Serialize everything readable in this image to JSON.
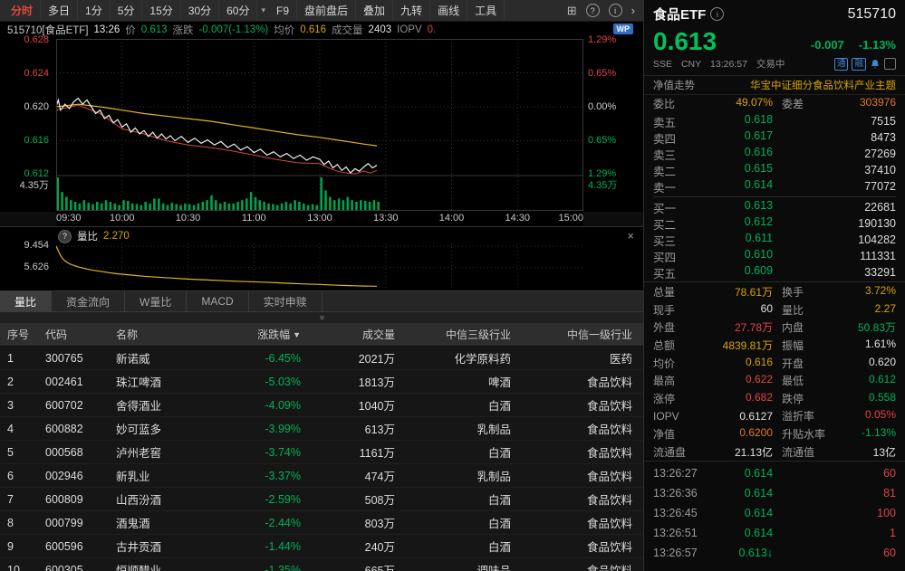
{
  "colors": {
    "up_red": "#e14444",
    "down_green": "#00b05a",
    "price_green": "#00c25c",
    "yellow": "#d8a400",
    "orange": "#e0762f",
    "blue_accent": "#3f85d6",
    "volume_green": "#00a14e",
    "avg_line": "#e3b422",
    "price_line": "#f0f0f0",
    "iopv_line": "#d64545"
  },
  "icons": {
    "caret": "▾",
    "grid": "⊞",
    "help": "?",
    "chevron_right": "›",
    "collapse": "»",
    "close": "×",
    "sort_desc": "▼",
    "info": "i",
    "question": "?"
  },
  "toolbar": {
    "periods": [
      {
        "label": "分时",
        "cls": "tb-active"
      },
      {
        "label": "多日"
      },
      {
        "label": "1分"
      },
      {
        "label": "5分"
      },
      {
        "label": "15分"
      },
      {
        "label": "30分"
      },
      {
        "label": "60分"
      }
    ],
    "actions": [
      {
        "label": "F9"
      },
      {
        "label": "盘前盘后"
      },
      {
        "label": "叠加"
      },
      {
        "label": "九转"
      },
      {
        "label": "画线"
      },
      {
        "label": "工具"
      }
    ]
  },
  "chart_header": {
    "code_name": "515710[食品ETF]",
    "time": "13:26",
    "price_label": "价",
    "price": "0.613",
    "change_label": "涨跌",
    "change": "-0.007(-1.13%)",
    "avg_label": "均价",
    "avg": "0.616",
    "volume_label": "成交量",
    "volume": "2403",
    "iopv_label": "IOPV",
    "iopv": "0.",
    "wp_badge": "WP"
  },
  "main_chart": {
    "y_left": [
      "0.628",
      "0.624",
      "0.620",
      "0.616",
      "0.612"
    ],
    "y_left_vol": "4.35万",
    "y_right": [
      "1.29%",
      "0.65%",
      "0.00%",
      "0.65%",
      "1.29%"
    ],
    "y_right_vol": "4.35万",
    "x_labels": [
      "09:30",
      "10:00",
      "10:30",
      "11:00",
      "13:00",
      "13:30",
      "14:00",
      "14:30",
      "15:00"
    ],
    "axis": {
      "price_max": 0.628,
      "price_min": 0.612,
      "minutes": 240
    },
    "price": [
      [
        0,
        0.62
      ],
      [
        1,
        0.6208
      ],
      [
        2,
        0.6196
      ],
      [
        4,
        0.6203
      ],
      [
        6,
        0.6198
      ],
      [
        8,
        0.6206
      ],
      [
        10,
        0.621
      ],
      [
        12,
        0.6203
      ],
      [
        14,
        0.6208
      ],
      [
        16,
        0.62
      ],
      [
        18,
        0.6192
      ],
      [
        20,
        0.6196
      ],
      [
        22,
        0.6186
      ],
      [
        24,
        0.619
      ],
      [
        26,
        0.6181
      ],
      [
        28,
        0.6185
      ],
      [
        30,
        0.6176
      ],
      [
        32,
        0.618
      ],
      [
        34,
        0.617
      ],
      [
        36,
        0.6175
      ],
      [
        38,
        0.6168
      ],
      [
        40,
        0.6172
      ],
      [
        42,
        0.6165
      ],
      [
        44,
        0.617
      ],
      [
        46,
        0.6163
      ],
      [
        48,
        0.6168
      ],
      [
        50,
        0.6162
      ],
      [
        52,
        0.6166
      ],
      [
        54,
        0.616
      ],
      [
        57,
        0.6165
      ],
      [
        60,
        0.6158
      ],
      [
        63,
        0.6163
      ],
      [
        66,
        0.6157
      ],
      [
        69,
        0.6161
      ],
      [
        72,
        0.6155
      ],
      [
        75,
        0.6159
      ],
      [
        78,
        0.6152
      ],
      [
        81,
        0.6156
      ],
      [
        84,
        0.6149
      ],
      [
        87,
        0.6153
      ],
      [
        90,
        0.6146
      ],
      [
        93,
        0.615
      ],
      [
        96,
        0.6143
      ],
      [
        99,
        0.6147
      ],
      [
        102,
        0.6141
      ],
      [
        105,
        0.6145
      ],
      [
        108,
        0.6139
      ],
      [
        111,
        0.6143
      ],
      [
        114,
        0.6137
      ],
      [
        117,
        0.6141
      ],
      [
        120,
        0.6138
      ],
      [
        122,
        0.6132
      ],
      [
        124,
        0.6136
      ],
      [
        126,
        0.6128
      ],
      [
        128,
        0.6132
      ],
      [
        130,
        0.6125
      ],
      [
        132,
        0.6129
      ],
      [
        134,
        0.6122
      ],
      [
        136,
        0.6127
      ],
      [
        138,
        0.6124
      ],
      [
        140,
        0.6129
      ],
      [
        142,
        0.6133
      ],
      [
        144,
        0.6128
      ],
      [
        146,
        0.6131
      ]
    ],
    "avg": [
      [
        0,
        0.62
      ],
      [
        10,
        0.6203
      ],
      [
        20,
        0.62
      ],
      [
        30,
        0.6196
      ],
      [
        40,
        0.6192
      ],
      [
        50,
        0.6189
      ],
      [
        60,
        0.6186
      ],
      [
        70,
        0.6183
      ],
      [
        80,
        0.6179
      ],
      [
        90,
        0.6175
      ],
      [
        100,
        0.6171
      ],
      [
        110,
        0.6167
      ],
      [
        120,
        0.6164
      ],
      [
        130,
        0.616
      ],
      [
        140,
        0.6156
      ],
      [
        146,
        0.6154
      ]
    ],
    "iopv": [
      [
        0,
        0.6196
      ],
      [
        10,
        0.6202
      ],
      [
        20,
        0.6192
      ],
      [
        30,
        0.6174
      ],
      [
        40,
        0.6168
      ],
      [
        50,
        0.616
      ],
      [
        60,
        0.6155
      ],
      [
        70,
        0.6152
      ],
      [
        80,
        0.6148
      ],
      [
        90,
        0.6143
      ],
      [
        100,
        0.6138
      ],
      [
        110,
        0.6134
      ],
      [
        120,
        0.6133
      ],
      [
        124,
        0.6128
      ],
      [
        128,
        0.6124
      ],
      [
        132,
        0.6122
      ],
      [
        136,
        0.6121
      ],
      [
        140,
        0.6124
      ],
      [
        143,
        0.6122
      ],
      [
        146,
        0.6125
      ]
    ],
    "volume": [
      1.0,
      0.55,
      0.4,
      0.3,
      0.25,
      0.2,
      0.3,
      0.22,
      0.18,
      0.25,
      0.2,
      0.3,
      0.25,
      0.2,
      0.15,
      0.3,
      0.28,
      0.2,
      0.18,
      0.15,
      0.25,
      0.2,
      0.35,
      0.35,
      0.2,
      0.15,
      0.22,
      0.18,
      0.15,
      0.2,
      0.18,
      0.15,
      0.2,
      0.25,
      0.3,
      0.45,
      0.3,
      0.2,
      0.25,
      0.2,
      0.2,
      0.25,
      0.3,
      0.35,
      0.55,
      0.4,
      0.3,
      0.25,
      0.2,
      0.18,
      0.15,
      0.2,
      0.25,
      0.2,
      0.3,
      0.25,
      0.2,
      0.15,
      0.18,
      0.15,
      1.0,
      0.6,
      0.4,
      0.3,
      0.35,
      0.3,
      0.4,
      0.3,
      0.25,
      0.3,
      0.28,
      0.25,
      0.3,
      0.25
    ]
  },
  "subchart": {
    "label": "量比",
    "value": "2.270",
    "grid_labels": [
      "9.454",
      "5.626"
    ],
    "scale": {
      "max": 9.454,
      "min": 2.0
    },
    "series": [
      [
        0,
        9.45
      ],
      [
        1,
        8.6
      ],
      [
        2,
        7.8
      ],
      [
        3,
        7.2
      ],
      [
        4,
        6.8
      ],
      [
        6,
        6.3
      ],
      [
        8,
        6.0
      ],
      [
        10,
        5.75
      ],
      [
        12,
        5.55
      ],
      [
        14,
        5.35
      ],
      [
        16,
        5.2
      ],
      [
        20,
        4.95
      ],
      [
        24,
        4.7
      ],
      [
        28,
        4.5
      ],
      [
        32,
        4.35
      ],
      [
        36,
        4.2
      ],
      [
        40,
        4.05
      ],
      [
        46,
        3.9
      ],
      [
        52,
        3.75
      ],
      [
        58,
        3.6
      ],
      [
        64,
        3.48
      ],
      [
        70,
        3.37
      ],
      [
        76,
        3.27
      ],
      [
        82,
        3.17
      ],
      [
        88,
        3.08
      ],
      [
        94,
        3.0
      ],
      [
        100,
        2.9
      ],
      [
        106,
        2.8
      ],
      [
        112,
        2.7
      ],
      [
        118,
        2.62
      ],
      [
        120,
        2.6
      ],
      [
        124,
        2.52
      ],
      [
        128,
        2.46
      ],
      [
        132,
        2.4
      ],
      [
        136,
        2.35
      ],
      [
        140,
        2.31
      ],
      [
        143,
        2.29
      ],
      [
        146,
        2.27
      ]
    ]
  },
  "tabs": [
    {
      "label": "量比",
      "cls": "tab-active"
    },
    {
      "label": "资金流向"
    },
    {
      "label": "W量比"
    },
    {
      "label": "MACD"
    },
    {
      "label": "实时申赎"
    }
  ],
  "table": {
    "headers": [
      "序号",
      "代码",
      "名称",
      "涨跌幅",
      "成交量",
      "中信三级行业",
      "中信一级行业"
    ],
    "sort_icon": "▼",
    "rows": [
      {
        "idx": "1",
        "code": "300765",
        "name": "新诺威",
        "chg": "-6.45%",
        "cls": "c-green",
        "vol": "2021万",
        "ind3": "化学原料药",
        "ind1": "医药"
      },
      {
        "idx": "2",
        "code": "002461",
        "name": "珠江啤酒",
        "chg": "-5.03%",
        "cls": "c-green",
        "vol": "1813万",
        "ind3": "啤酒",
        "ind1": "食品饮料"
      },
      {
        "idx": "3",
        "code": "600702",
        "name": "舍得酒业",
        "chg": "-4.09%",
        "cls": "c-green",
        "vol": "1040万",
        "ind3": "白酒",
        "ind1": "食品饮料"
      },
      {
        "idx": "4",
        "code": "600882",
        "name": "妙可蓝多",
        "chg": "-3.99%",
        "cls": "c-green",
        "vol": "613万",
        "ind3": "乳制品",
        "ind1": "食品饮料"
      },
      {
        "idx": "5",
        "code": "000568",
        "name": "泸州老窖",
        "chg": "-3.74%",
        "cls": "c-green",
        "vol": "1161万",
        "ind3": "白酒",
        "ind1": "食品饮料"
      },
      {
        "idx": "6",
        "code": "002946",
        "name": "新乳业",
        "chg": "-3.37%",
        "cls": "c-green",
        "vol": "474万",
        "ind3": "乳制品",
        "ind1": "食品饮料"
      },
      {
        "idx": "7",
        "code": "600809",
        "name": "山西汾酒",
        "chg": "-2.59%",
        "cls": "c-green",
        "vol": "508万",
        "ind3": "白酒",
        "ind1": "食品饮料"
      },
      {
        "idx": "8",
        "code": "000799",
        "name": "酒鬼酒",
        "chg": "-2.44%",
        "cls": "c-green",
        "vol": "803万",
        "ind3": "白酒",
        "ind1": "食品饮料"
      },
      {
        "idx": "9",
        "code": "600596",
        "name": "古井贡酒",
        "chg": "-1.44%",
        "cls": "c-green",
        "vol": "240万",
        "ind3": "白酒",
        "ind1": "食品饮料"
      },
      {
        "idx": "10",
        "code": "600305",
        "name": "恒顺醋业",
        "chg": "-1.35%",
        "cls": "c-green",
        "vol": "665万",
        "ind3": "调味品",
        "ind1": "食品饮料"
      }
    ]
  },
  "panel": {
    "title": "食品ETF",
    "code": "515710",
    "price": "0.613",
    "change": "-0.007",
    "change_pct": "-1.13%",
    "exchange": "SSE",
    "currency": "CNY",
    "time": "13:26:57",
    "status": "交易中",
    "badges": [
      "通",
      "融"
    ],
    "nav_label": "净值走势",
    "nav_value": "华宝中证细分食品饮料产业主题",
    "weibi_label": "委比",
    "weibi_value": "49.07%",
    "weicha_label": "委差",
    "weicha_value": "303976",
    "asks": [
      {
        "label": "卖五",
        "price": "0.618",
        "cls": "c-green",
        "vol": "7515"
      },
      {
        "label": "卖四",
        "price": "0.617",
        "cls": "c-green",
        "vol": "8473"
      },
      {
        "label": "卖三",
        "price": "0.616",
        "cls": "c-green",
        "vol": "27269"
      },
      {
        "label": "卖二",
        "price": "0.615",
        "cls": "c-green",
        "vol": "37410"
      },
      {
        "label": "卖一",
        "price": "0.614",
        "cls": "c-green",
        "vol": "77072"
      }
    ],
    "bids": [
      {
        "label": "买一",
        "price": "0.613",
        "cls": "c-green",
        "vol": "22681"
      },
      {
        "label": "买二",
        "price": "0.612",
        "cls": "c-green",
        "vol": "190130"
      },
      {
        "label": "买三",
        "price": "0.611",
        "cls": "c-green",
        "vol": "104282"
      },
      {
        "label": "买四",
        "price": "0.610",
        "cls": "c-green",
        "vol": "111331"
      },
      {
        "label": "买五",
        "price": "0.609",
        "cls": "c-green",
        "vol": "33291"
      }
    ],
    "stats": [
      {
        "l1": "总量",
        "v1": "78.61万",
        "k1": "c-yellow",
        "l2": "换手",
        "v2": "3.72%",
        "k2": "c-yellow"
      },
      {
        "l1": "现手",
        "v1": "60",
        "k1": "c-white",
        "l2": "量比",
        "v2": "2.27",
        "k2": "c-yellow"
      },
      {
        "l1": "外盘",
        "v1": "27.78万",
        "k1": "c-red",
        "l2": "内盘",
        "v2": "50.83万",
        "k2": "c-green"
      },
      {
        "l1": "总额",
        "v1": "4839.81万",
        "k1": "c-yellow",
        "l2": "振幅",
        "v2": "1.61%",
        "k2": "c-white"
      },
      {
        "l1": "均价",
        "v1": "0.616",
        "k1": "c-yellow",
        "l2": "开盘",
        "v2": "0.620",
        "k2": "c-white"
      },
      {
        "l1": "最高",
        "v1": "0.622",
        "k1": "c-red",
        "l2": "最低",
        "v2": "0.612",
        "k2": "c-green"
      },
      {
        "l1": "涨停",
        "v1": "0.682",
        "k1": "c-red",
        "l2": "跌停",
        "v2": "0.558",
        "k2": "c-green"
      },
      {
        "l1": "IOPV",
        "v1": "0.6127",
        "k1": "c-white",
        "l2": "溢折率",
        "v2": "0.05%",
        "k2": "c-red"
      },
      {
        "l1": "净值",
        "v1": "0.6200",
        "k1": "c-orange",
        "l2": "升贴水率",
        "v2": "-1.13%",
        "k2": "c-green"
      },
      {
        "l1": "流通盘",
        "v1": "21.13亿",
        "k1": "c-white",
        "l2": "流通值",
        "v2": "13亿",
        "k2": "c-white"
      }
    ],
    "ticks": [
      {
        "time": "13:26:27",
        "price": "0.614",
        "cls": "c-green",
        "arrow": "",
        "vol": "60",
        "vcls": "c-red"
      },
      {
        "time": "13:26:36",
        "price": "0.614",
        "cls": "c-green",
        "arrow": "",
        "vol": "81",
        "vcls": "c-red"
      },
      {
        "time": "13:26:45",
        "price": "0.614",
        "cls": "c-green",
        "arrow": "",
        "vol": "100",
        "vcls": "c-red"
      },
      {
        "time": "13:26:51",
        "price": "0.614",
        "cls": "c-green",
        "arrow": "",
        "vol": "1",
        "vcls": "c-red"
      },
      {
        "time": "13:26:57",
        "price": "0.613",
        "cls": "c-green",
        "arrow": "↓",
        "vol": "60",
        "vcls": "c-red"
      }
    ]
  }
}
